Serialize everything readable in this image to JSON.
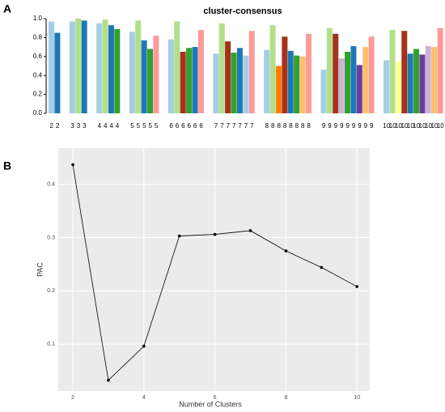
{
  "chart_data": [
    {
      "type": "bar",
      "panel": "A",
      "title": "cluster-consensus",
      "ylim": [
        0,
        1.0
      ],
      "yticks": [
        {
          "value": 0,
          "label": "0.0"
        },
        0.2,
        0.4,
        0.6,
        0.8,
        {
          "value": 1.0,
          "label": "1.0"
        }
      ],
      "groups": [
        {
          "name": "2",
          "values": [
            0.97,
            0.85
          ],
          "colors": [
            "#A6CEE3",
            "#1F78B4"
          ]
        },
        {
          "name": "3",
          "values": [
            0.97,
            1.0,
            0.98
          ],
          "colors": [
            "#A6CEE3",
            "#B2DF8A",
            "#1F78B4"
          ]
        },
        {
          "name": "4",
          "values": [
            0.95,
            0.99,
            0.93,
            0.89
          ],
          "colors": [
            "#A6CEE3",
            "#B2DF8A",
            "#1F78B4",
            "#33A02C"
          ]
        },
        {
          "name": "5",
          "values": [
            0.86,
            0.98,
            0.77,
            0.68,
            0.82
          ],
          "colors": [
            "#A6CEE3",
            "#B2DF8A",
            "#1F78B4",
            "#33A02C",
            "#FB9A99"
          ]
        },
        {
          "name": "6",
          "values": [
            0.78,
            0.97,
            0.65,
            0.69,
            0.7,
            0.88
          ],
          "colors": [
            "#A6CEE3",
            "#B2DF8A",
            "#A6321C",
            "#33A02C",
            "#1F78B4",
            "#FB9A99"
          ]
        },
        {
          "name": "7",
          "values": [
            0.63,
            0.95,
            0.76,
            0.64,
            0.69,
            0.61,
            0.87
          ],
          "colors": [
            "#A6CEE3",
            "#B2DF8A",
            "#A6321C",
            "#33A02C",
            "#1F78B4",
            "#A6CEE3",
            "#FB9A99"
          ]
        },
        {
          "name": "8",
          "values": [
            0.67,
            0.93,
            0.5,
            0.81,
            0.66,
            0.61,
            0.6,
            0.84
          ],
          "colors": [
            "#A6CEE3",
            "#B2DF8A",
            "#FF7F00",
            "#A6321C",
            "#1F78B4",
            "#33A02C",
            "#FDBF6F",
            "#FB9A99"
          ]
        },
        {
          "name": "9",
          "values": [
            0.46,
            0.9,
            0.84,
            0.58,
            0.65,
            0.71,
            0.51,
            0.7,
            0.81
          ],
          "colors": [
            "#A6CEE3",
            "#B2DF8A",
            "#A6321C",
            "#CAB2D6",
            "#33A02C",
            "#1F78B4",
            "#6A3D9A",
            "#FDBF6F",
            "#FB9A99"
          ]
        },
        {
          "name": "10",
          "values": [
            0.56,
            0.88,
            0.55,
            0.87,
            0.63,
            0.68,
            0.62,
            0.71,
            0.7,
            0.9
          ],
          "colors": [
            "#A6CEE3",
            "#B2DF8A",
            "#FFFF99",
            "#A6321C",
            "#1F78B4",
            "#33A02C",
            "#6A3D9A",
            "#CAB2D6",
            "#FDBF6F",
            "#FB9A99"
          ]
        }
      ]
    },
    {
      "type": "line",
      "panel": "B",
      "xlabel": "Number of Clusters",
      "ylabel": "PAC",
      "x": [
        2,
        3,
        4,
        5,
        6,
        7,
        8,
        9,
        10
      ],
      "values": [
        0.437,
        0.032,
        0.096,
        0.303,
        0.306,
        0.313,
        0.275,
        0.244,
        0.208
      ],
      "color": "#000000",
      "xlim": [
        1.59,
        10.36
      ],
      "xticks": [
        2,
        4,
        6,
        8,
        10
      ],
      "ylim": [
        0.012,
        0.468
      ],
      "yticks": [
        0.1,
        0.2,
        0.3,
        0.4
      ],
      "grid": true
    }
  ]
}
